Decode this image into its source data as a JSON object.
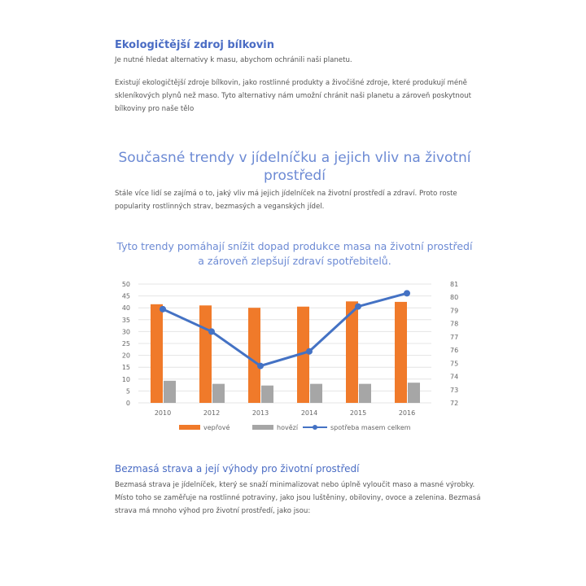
{
  "section1": {
    "title": "Ekologičtější zdroj bílkovin",
    "p1": "Je nutné hledat alternativy k masu, abychom ochránili naši planetu.",
    "p2": "Existují ekologičtější zdroje bílkovin, jako rostlinné produkty a živočišné zdroje, které produkují méně skleníkových plynů než maso. Tyto alternativy nám umožní chránit naši planetu a zároveň poskytnout bílkoviny pro naše tělo"
  },
  "section2": {
    "title": "Současné trendy v jídelníčku a jejich vliv na životní prostředí",
    "p1": "Stále více lidí se zajímá o to, jaký vliv má jejich jídelníček na životní prostředí a zdraví. Proto roste popularity rostlinných strav, bezmasých a veganských jídel.",
    "chart_heading": "Tyto trendy pomáhají snížit dopad produkce masa na životní prostředí a zároveň zlepšují zdraví spotřebitelů."
  },
  "chart_data": {
    "type": "bar",
    "categories": [
      "2010",
      "2012",
      "2013",
      "2014",
      "2015",
      "2016"
    ],
    "series": [
      {
        "name": "vepřové",
        "type": "bar",
        "axis": "left",
        "color": "#f07a2a",
        "values": [
          41.5,
          41,
          40,
          40.5,
          42.7,
          42.5
        ]
      },
      {
        "name": "hovězí",
        "type": "bar",
        "axis": "left",
        "color": "#a6a6a6",
        "values": [
          9.3,
          8,
          7.3,
          8,
          8,
          8.5
        ]
      },
      {
        "name": "spotřeba masem celkem",
        "type": "line",
        "axis": "right",
        "color": "#4472c4",
        "values": [
          79.1,
          77.4,
          74.8,
          75.9,
          79.3,
          80.3
        ]
      }
    ],
    "ylim": [
      0,
      50
    ],
    "yticks": [
      0,
      5,
      10,
      15,
      20,
      25,
      30,
      35,
      40,
      45,
      50
    ],
    "y2lim": [
      72,
      81
    ],
    "y2ticks": [
      72,
      73,
      74,
      75,
      76,
      77,
      78,
      79,
      80,
      81
    ],
    "grid": true,
    "legend": "bottom"
  },
  "section3": {
    "title": "Bezmasá strava a její výhody pro životní prostředí",
    "p1": "Bezmasá strava je jídelníček, který se snaží minimalizovat nebo úplně vyloučit maso a masné výrobky. Místo toho se zaměřuje na rostlinné potraviny, jako jsou luštěniny, obiloviny, ovoce a zelenina. Bezmasá strava má mnoho výhod pro životní prostředí, jako jsou:"
  }
}
